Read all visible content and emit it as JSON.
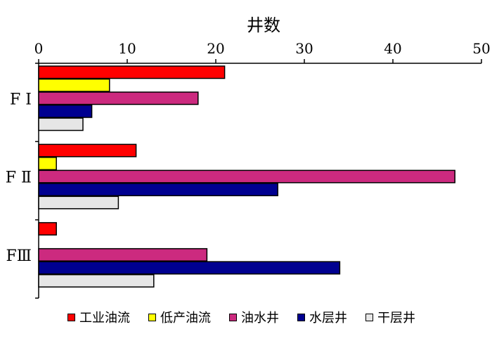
{
  "chart_data": {
    "type": "bar",
    "orientation": "horizontal",
    "title": "",
    "xlabel": "井数",
    "ylabel": "",
    "xlim": [
      0,
      50
    ],
    "x_ticks": [
      0,
      10,
      20,
      30,
      40,
      50
    ],
    "categories": [
      "F Ⅰ",
      "F Ⅱ",
      "FⅢ"
    ],
    "series": [
      {
        "name": "工业油流",
        "color": "#ff0000",
        "values": [
          21,
          11,
          2
        ]
      },
      {
        "name": "低产油流",
        "color": "#ffff00",
        "values": [
          8,
          2,
          0
        ]
      },
      {
        "name": "油水井",
        "color": "#cc2a7f",
        "values": [
          18,
          47,
          19
        ]
      },
      {
        "name": "水层井",
        "color": "#000090",
        "values": [
          6,
          27,
          34
        ]
      },
      {
        "name": "干层井",
        "color": "#e6e6e6",
        "values": [
          5,
          9,
          13
        ]
      }
    ],
    "grid": false,
    "legend_position": "bottom"
  }
}
